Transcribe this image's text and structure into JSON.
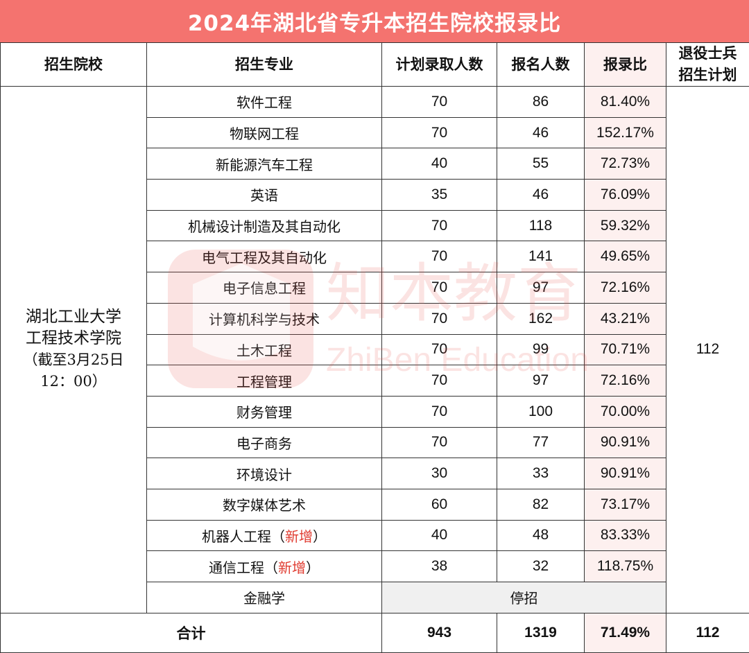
{
  "title": "2024年湖北省专升本招生院校报录比",
  "headers": {
    "school": "招生院校",
    "major": "招生专业",
    "plan": "计划录取人数",
    "applicants": "报名人数",
    "ratio": "报录比",
    "veteran_line1": "退役士兵",
    "veteran_line2": "招生计划"
  },
  "school": {
    "line1": "湖北工业大学",
    "line2": "工程技术学院",
    "line3": "（截至3月25日",
    "line4": "12：00）",
    "veteran_plan": "112"
  },
  "rows": [
    {
      "major": "软件工程",
      "tag": "",
      "plan": "70",
      "applicants": "86",
      "ratio": "81.40%"
    },
    {
      "major": "物联网工程",
      "tag": "",
      "plan": "70",
      "applicants": "46",
      "ratio": "152.17%"
    },
    {
      "major": "新能源汽车工程",
      "tag": "",
      "plan": "40",
      "applicants": "55",
      "ratio": "72.73%"
    },
    {
      "major": "英语",
      "tag": "",
      "plan": "35",
      "applicants": "46",
      "ratio": "76.09%"
    },
    {
      "major": "机械设计制造及其自动化",
      "tag": "",
      "plan": "70",
      "applicants": "118",
      "ratio": "59.32%"
    },
    {
      "major": "电气工程及其自动化",
      "tag": "",
      "plan": "70",
      "applicants": "141",
      "ratio": "49.65%"
    },
    {
      "major": "电子信息工程",
      "tag": "",
      "plan": "70",
      "applicants": "97",
      "ratio": "72.16%"
    },
    {
      "major": "计算机科学与技术",
      "tag": "",
      "plan": "70",
      "applicants": "162",
      "ratio": "43.21%"
    },
    {
      "major": "土木工程",
      "tag": "",
      "plan": "70",
      "applicants": "99",
      "ratio": "70.71%"
    },
    {
      "major": "工程管理",
      "tag": "",
      "plan": "70",
      "applicants": "97",
      "ratio": "72.16%"
    },
    {
      "major": "财务管理",
      "tag": "",
      "plan": "70",
      "applicants": "100",
      "ratio": "70.00%"
    },
    {
      "major": "电子商务",
      "tag": "",
      "plan": "70",
      "applicants": "77",
      "ratio": "90.91%"
    },
    {
      "major": "环境设计",
      "tag": "",
      "plan": "30",
      "applicants": "33",
      "ratio": "90.91%"
    },
    {
      "major": "数字媒体艺术",
      "tag": "",
      "plan": "60",
      "applicants": "82",
      "ratio": "73.17%"
    },
    {
      "major": "机器人工程",
      "tag": "新增",
      "plan": "40",
      "applicants": "48",
      "ratio": "83.33%"
    },
    {
      "major": "通信工程",
      "tag": "新增",
      "plan": "38",
      "applicants": "32",
      "ratio": "118.75%"
    }
  ],
  "stopped": {
    "major": "金融学",
    "status": "停招"
  },
  "total": {
    "label": "合计",
    "plan": "943",
    "applicants": "1319",
    "ratio": "71.49%",
    "veteran": "112"
  },
  "watermark": {
    "cn": "知本教育",
    "en": "ZhiBen Education"
  },
  "colors": {
    "title_bg": "#f4736f",
    "ratio_bg": "#fdf0ef",
    "stopped_bg": "#f0f0f0",
    "new_tag": "#e03c31"
  }
}
